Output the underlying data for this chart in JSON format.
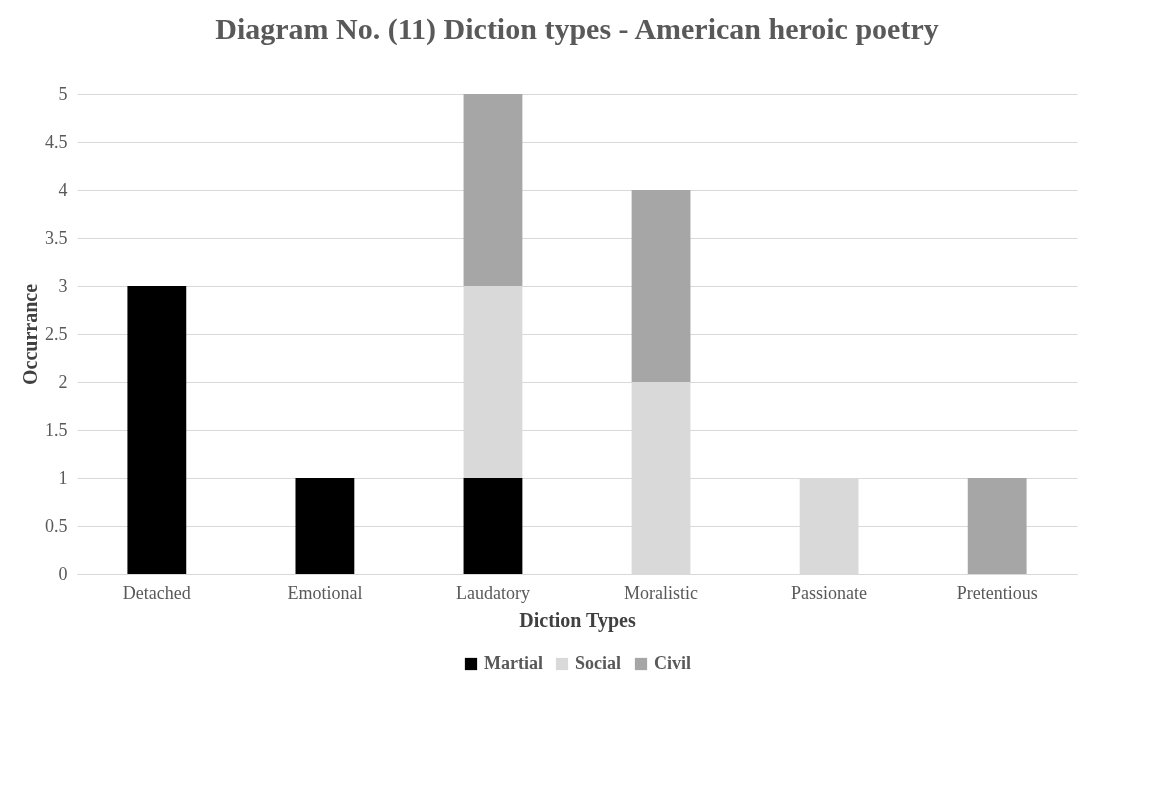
{
  "chart_data": {
    "type": "bar",
    "title": "Diagram No. (11) Diction types - American heroic poetry",
    "xlabel": "Diction Types",
    "ylabel": "Occurrance",
    "categories": [
      "Detached",
      "Emotional",
      "Laudatory",
      "Moralistic",
      "Passionate",
      "Pretentious"
    ],
    "stacked": true,
    "series": [
      {
        "name": "Martial",
        "color": "#000000",
        "values": [
          3,
          1,
          1,
          null,
          null,
          null
        ]
      },
      {
        "name": "Social",
        "color": "#d9d9d9",
        "values": [
          null,
          null,
          2,
          2,
          1,
          null
        ]
      },
      {
        "name": "Civil",
        "color": "#a6a6a6",
        "values": [
          null,
          null,
          2,
          2,
          null,
          1
        ]
      }
    ],
    "ylim": [
      0,
      5
    ],
    "yticks": [
      0,
      0.5,
      1,
      1.5,
      2,
      2.5,
      3,
      3.5,
      4,
      4.5,
      5
    ],
    "grid": "y",
    "legend": "bottom"
  }
}
